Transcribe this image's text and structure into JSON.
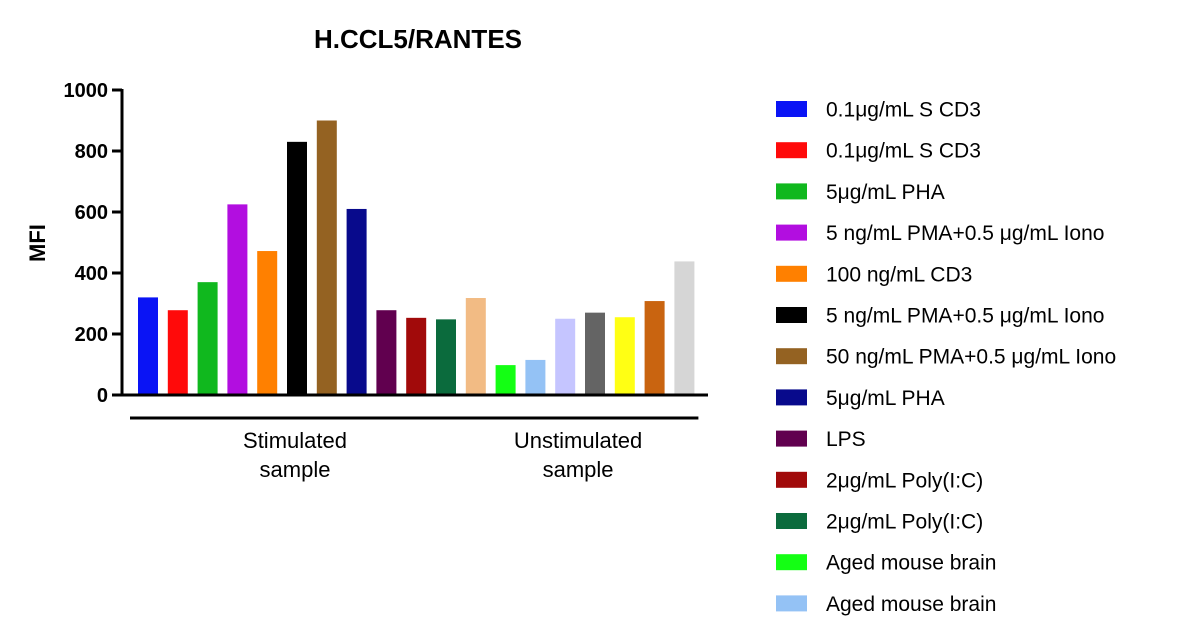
{
  "chart_data": {
    "type": "bar",
    "title": "H.CCL5/RANTES",
    "xlabel": "",
    "ylabel": "MFI",
    "ylim": [
      0,
      1000
    ],
    "yticks": [
      "0",
      "200",
      "400",
      "600",
      "800",
      "1000"
    ],
    "grid": false,
    "legend_position": "right",
    "groups": [
      {
        "label_lines": [
          "Stimulated",
          "sample"
        ],
        "bar_count": 11
      },
      {
        "label_lines": [
          "Unstimulated",
          "sample"
        ],
        "bar_count": 8
      }
    ],
    "bars": [
      {
        "value": 320,
        "color": "#0a14f5"
      },
      {
        "value": 278,
        "color": "#ff0a0a"
      },
      {
        "value": 370,
        "color": "#10b81e"
      },
      {
        "value": 625,
        "color": "#b20ee0"
      },
      {
        "value": 472,
        "color": "#ff8000"
      },
      {
        "value": 830,
        "color": "#000000"
      },
      {
        "value": 900,
        "color": "#946222"
      },
      {
        "value": 610,
        "color": "#080a8c"
      },
      {
        "value": 278,
        "color": "#61004f"
      },
      {
        "value": 253,
        "color": "#a10a0a"
      },
      {
        "value": 248,
        "color": "#0b6b3d"
      },
      {
        "value": 318,
        "color": "#f2bb84"
      },
      {
        "value": 98,
        "color": "#14ff14"
      },
      {
        "value": 115,
        "color": "#94c2f5"
      },
      {
        "value": 250,
        "color": "#c5c5ff"
      },
      {
        "value": 270,
        "color": "#646464"
      },
      {
        "value": 255,
        "color": "#ffff14"
      },
      {
        "value": 308,
        "color": "#c96410"
      },
      {
        "value": 438,
        "color": "#d6d6d6"
      }
    ],
    "legend": [
      {
        "label": "0.1μg/mL S CD3",
        "color": "#0a14f5"
      },
      {
        "label": "0.1μg/mL S CD3",
        "color": "#ff0a0a"
      },
      {
        "label": "5μg/mL PHA",
        "color": "#10b81e"
      },
      {
        "label": "5 ng/mL PMA+0.5 μg/mL Iono",
        "color": "#b20ee0"
      },
      {
        "label": "100 ng/mL CD3",
        "color": "#ff8000"
      },
      {
        "label": "5 ng/mL PMA+0.5 μg/mL Iono",
        "color": "#000000"
      },
      {
        "label": "50 ng/mL PMA+0.5 μg/mL Iono",
        "color": "#946222"
      },
      {
        "label": "5μg/mL PHA",
        "color": "#080a8c"
      },
      {
        "label": "LPS",
        "color": "#61004f"
      },
      {
        "label": "2μg/mL Poly(I:C)",
        "color": "#a10a0a"
      },
      {
        "label": "2μg/mL Poly(I:C)",
        "color": "#0b6b3d"
      },
      {
        "label": "Aged mouse brain",
        "color": "#14ff14"
      },
      {
        "label": "Aged mouse brain",
        "color": "#94c2f5"
      }
    ]
  }
}
